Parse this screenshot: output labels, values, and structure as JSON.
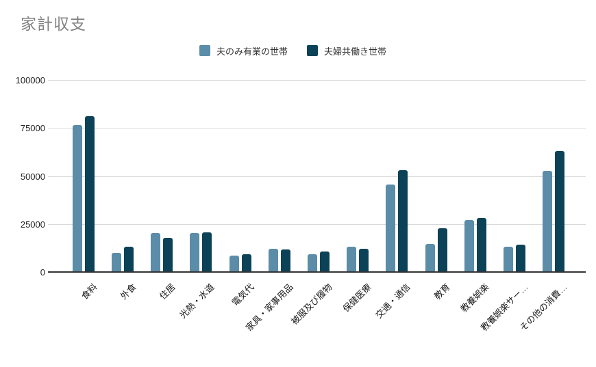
{
  "title": "家計収支",
  "legend": [
    {
      "label": "夫のみ有業の世帯",
      "color": "#5b8ca8"
    },
    {
      "label": "夫婦共働き世帯",
      "color": "#0c4257"
    }
  ],
  "chart_data": {
    "type": "bar",
    "title": "家計収支",
    "categories": [
      "食料",
      "外食",
      "住居",
      "光熱・水道",
      "電気代",
      "家具・家事用品",
      "被服及び履物",
      "保健医療",
      "交通・通信",
      "教育",
      "教養娯楽",
      "教養娯楽サー…",
      "その他の消費…"
    ],
    "series": [
      {
        "name": "夫のみ有業の世帯",
        "color": "#5b8ca8",
        "values": [
          77000,
          10500,
          20500,
          20500,
          9000,
          12500,
          9500,
          13500,
          46000,
          15000,
          27500,
          13500,
          53000
        ]
      },
      {
        "name": "夫婦共働き世帯",
        "color": "#0c4257",
        "values": [
          81500,
          13500,
          18000,
          21000,
          9500,
          12000,
          11000,
          12500,
          53500,
          23000,
          28500,
          14500,
          63500
        ]
      }
    ],
    "xlabel": "",
    "ylabel": "",
    "ylim": [
      0,
      100000
    ],
    "yticks": [
      0,
      25000,
      50000,
      75000,
      100000
    ],
    "grid": true,
    "legend_position": "top",
    "category_label_rotation_deg": -45
  }
}
